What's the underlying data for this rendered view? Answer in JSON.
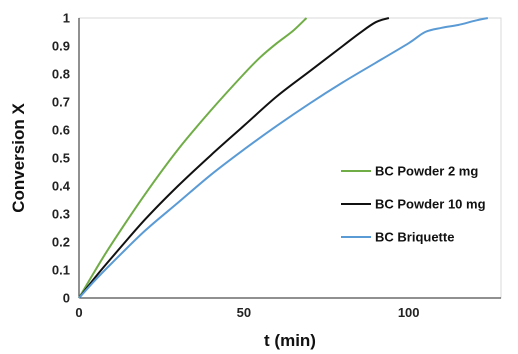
{
  "chart_data": {
    "type": "line",
    "title": "",
    "xlabel": "t (min)",
    "ylabel": "Conversion X",
    "xlim": [
      0,
      128
    ],
    "ylim": [
      0,
      1
    ],
    "x_ticks": [
      0,
      50,
      100
    ],
    "x_tick_labels": [
      "0",
      "50",
      "100"
    ],
    "y_ticks": [
      0,
      0.1,
      0.2,
      0.3,
      0.4,
      0.5,
      0.6,
      0.7,
      0.8,
      0.9,
      1
    ],
    "y_tick_labels": [
      "0",
      "0.1",
      "0.2",
      "0.3",
      "0.4",
      "0.5",
      "0.6",
      "0.7",
      "0.8",
      "0.9",
      "1"
    ],
    "grid": false,
    "legend_position": "right",
    "series": [
      {
        "name": "BC Powder 2 mg",
        "color": "#70ad47",
        "points": [
          [
            0,
            0
          ],
          [
            5,
            0.1
          ],
          [
            10,
            0.195
          ],
          [
            20,
            0.37
          ],
          [
            30,
            0.53
          ],
          [
            40,
            0.67
          ],
          [
            50,
            0.8
          ],
          [
            55,
            0.86
          ],
          [
            60,
            0.91
          ],
          [
            65,
            0.955
          ],
          [
            69,
            1.0
          ]
        ]
      },
      {
        "name": "BC Powder 10 mg",
        "color": "#111111",
        "points": [
          [
            0,
            0
          ],
          [
            5,
            0.075
          ],
          [
            10,
            0.145
          ],
          [
            20,
            0.28
          ],
          [
            30,
            0.4
          ],
          [
            40,
            0.51
          ],
          [
            50,
            0.615
          ],
          [
            60,
            0.72
          ],
          [
            70,
            0.81
          ],
          [
            80,
            0.9
          ],
          [
            85,
            0.945
          ],
          [
            90,
            0.985
          ],
          [
            94,
            1.0
          ]
        ]
      },
      {
        "name": "BC Briquette",
        "color": "#5b9bd5",
        "points": [
          [
            0,
            0
          ],
          [
            5,
            0.065
          ],
          [
            10,
            0.125
          ],
          [
            20,
            0.24
          ],
          [
            30,
            0.34
          ],
          [
            40,
            0.44
          ],
          [
            50,
            0.53
          ],
          [
            60,
            0.615
          ],
          [
            70,
            0.695
          ],
          [
            80,
            0.77
          ],
          [
            90,
            0.84
          ],
          [
            100,
            0.91
          ],
          [
            105,
            0.95
          ],
          [
            110,
            0.965
          ],
          [
            115,
            0.975
          ],
          [
            120,
            0.99
          ],
          [
            124,
            1.0
          ]
        ]
      }
    ]
  }
}
